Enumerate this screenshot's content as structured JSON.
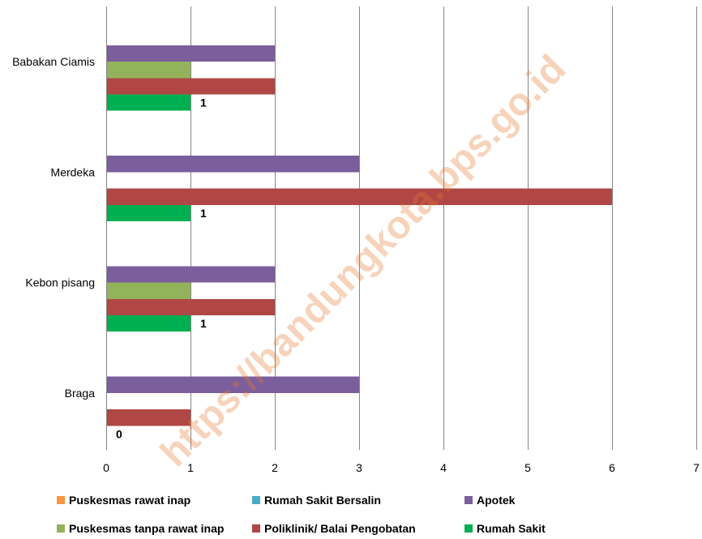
{
  "chart_data": {
    "type": "bar",
    "orientation": "horizontal",
    "categories": [
      "Babakan Ciamis",
      "Merdeka",
      "Kebon pisang",
      "Braga"
    ],
    "xlim": [
      0,
      7
    ],
    "xticks": [
      "0",
      "1",
      "2",
      "3",
      "4",
      "5",
      "6",
      "7"
    ],
    "grid": "vertical",
    "legend_position": "bottom",
    "series": [
      {
        "name": "Puskesmas rawat inap",
        "color": "#F79646",
        "values": [
          0,
          0,
          0,
          0
        ],
        "data_labels": false
      },
      {
        "name": "Rumah Sakit Bersalin",
        "color": "#4BACC6",
        "values": [
          0,
          0,
          0,
          0
        ],
        "data_labels": false
      },
      {
        "name": "Apotek",
        "color": "#7B5E9C",
        "values": [
          2,
          3,
          2,
          3
        ],
        "data_labels": false
      },
      {
        "name": "Puskesmas tanpa rawat inap",
        "color": "#93B35A",
        "values": [
          1,
          0,
          1,
          0
        ],
        "data_labels": false
      },
      {
        "name": "Poliklinik/ Balai Pengobatan",
        "color": "#B04745",
        "values": [
          2,
          6,
          2,
          1
        ],
        "data_labels": false
      },
      {
        "name": "Rumah Sakit",
        "color": "#00B050",
        "values": [
          1,
          1,
          1,
          0
        ],
        "data_labels": true
      }
    ]
  },
  "watermark": "https://bandungkota.bps.go.id"
}
